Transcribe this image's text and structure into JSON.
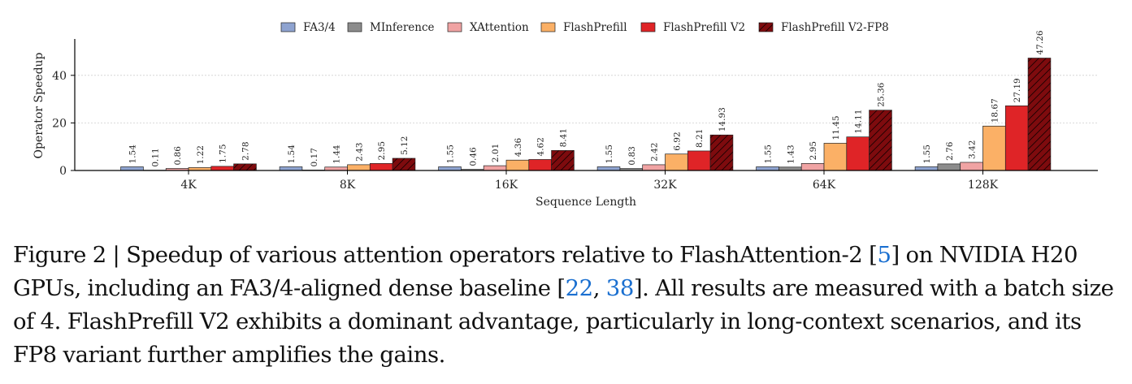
{
  "chart_data": {
    "type": "bar",
    "xlabel": "Sequence Length",
    "ylabel": "Operator Speedup",
    "categories": [
      "4K",
      "8K",
      "16K",
      "32K",
      "64K",
      "128K"
    ],
    "ylim": [
      0,
      55
    ],
    "yticks": [
      0,
      20,
      40
    ],
    "grid": true,
    "legend_position": "top-center",
    "series": [
      {
        "name": "FA3/4",
        "color": "#8ea3d0",
        "values": [
          1.54,
          1.54,
          1.55,
          1.55,
          1.55,
          1.55
        ],
        "labels": [
          "1.54",
          "1.54",
          "1.55",
          "1.55",
          "1.55",
          "1.55"
        ]
      },
      {
        "name": "MInference",
        "color": "#8c8c8c",
        "values": [
          0.11,
          0.17,
          0.46,
          0.83,
          1.43,
          2.76
        ],
        "labels": [
          "0.11",
          "0.17",
          "0.46",
          "0.83",
          "1.43",
          "2.76"
        ]
      },
      {
        "name": "XAttention",
        "color": "#f0a3a3",
        "values": [
          0.86,
          1.44,
          2.01,
          2.42,
          2.95,
          3.42
        ],
        "labels": [
          "0.86",
          "1.44",
          "2.01",
          "2.42",
          "2.95",
          "3.42"
        ]
      },
      {
        "name": "FlashPrefill",
        "color": "#fbb066",
        "values": [
          1.22,
          2.43,
          4.36,
          6.92,
          11.45,
          18.67
        ],
        "labels": [
          "1.22",
          "2.43",
          "4.36",
          "6.92",
          "11.45",
          "18.67"
        ]
      },
      {
        "name": "FlashPrefill V2",
        "color": "#df2427",
        "values": [
          1.75,
          2.95,
          4.62,
          8.21,
          14.11,
          27.19
        ],
        "labels": [
          "1.75",
          "2.95",
          "4.62",
          "8.21",
          "14.11",
          "27.19"
        ]
      },
      {
        "name": "FlashPrefill V2-FP8",
        "color": "#7e0b0e",
        "hatch": true,
        "values": [
          2.78,
          5.12,
          8.41,
          14.93,
          25.36,
          47.26
        ],
        "labels": [
          "2.78",
          "5.12",
          "8.41",
          "14.93",
          "25.36",
          "47.26"
        ]
      }
    ]
  },
  "caption": {
    "prefix": "Figure 2 | Speedup of various attention operators relative to FlashAttention-2 [",
    "ref1": "5",
    "mid1": "] on NVIDIA H20 GPUs, including an FA3/4-aligned dense baseline [",
    "ref2": "22",
    "sep": ", ",
    "ref3": "38",
    "rest": "]. All results are measured with a batch size of 4. FlashPrefill V2 exhibits a dominant advantage, particularly in long-context scenarios, and its FP8 variant further amplifies the gains."
  }
}
